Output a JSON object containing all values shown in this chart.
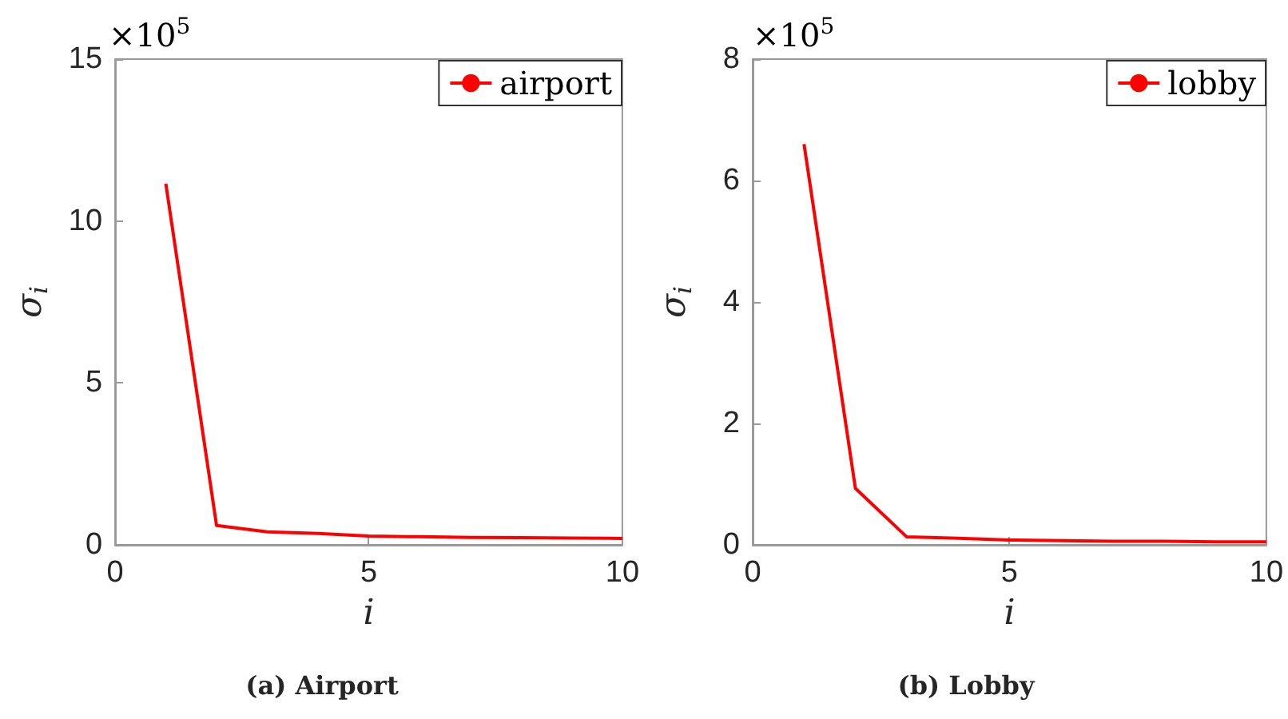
{
  "chart_data": [
    {
      "type": "line",
      "title": "(a) Airport",
      "xlabel": "i",
      "ylabel": "σ$_{i}$",
      "annotations": [
        "×10$^{5}$"
      ],
      "x": [
        1,
        2,
        3,
        4,
        5,
        6,
        7,
        8,
        9,
        10
      ],
      "series": [
        {
          "name": "airport",
          "color": "#ff0000",
          "values": [
            11.15,
            0.6,
            0.4,
            0.35,
            0.27,
            0.25,
            0.23,
            0.22,
            0.21,
            0.2
          ]
        }
      ],
      "xlim": [
        0,
        10
      ],
      "xticks": [
        0,
        5,
        10
      ],
      "ylim": [
        0,
        15
      ],
      "yticks": [
        0,
        5,
        10,
        15
      ],
      "grid": false,
      "legend": "top right",
      "marker": "none",
      "line_style": "solid"
    },
    {
      "type": "line",
      "title": "(b) Lobby",
      "xlabel": "i",
      "ylabel": "σ$_{i}$",
      "annotations": [
        "×10$^{5}$"
      ],
      "x": [
        1,
        2,
        3,
        4,
        5,
        6,
        7,
        8,
        9,
        10
      ],
      "series": [
        {
          "name": "lobby",
          "color": "#ff0000",
          "values": [
            6.6,
            0.93,
            0.13,
            0.11,
            0.08,
            0.07,
            0.06,
            0.06,
            0.05,
            0.05
          ]
        }
      ],
      "xlim": [
        0,
        10
      ],
      "xticks": [
        0,
        5,
        10
      ],
      "ylim": [
        0,
        8
      ],
      "yticks": [
        0,
        2,
        4,
        6,
        8
      ],
      "grid": false,
      "legend": "top right",
      "marker": "none",
      "line_style": "solid"
    }
  ]
}
